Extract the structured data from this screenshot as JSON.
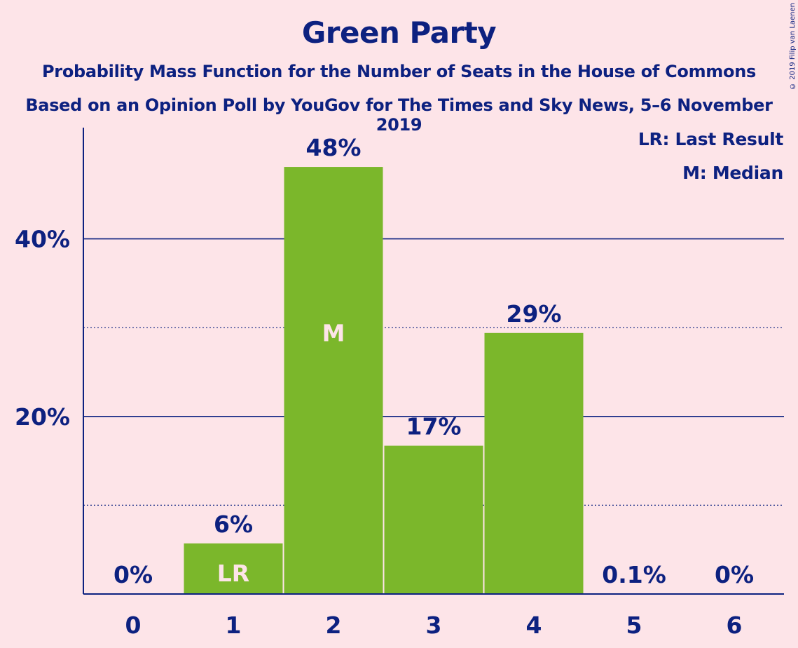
{
  "title": "Green Party",
  "subtitle_line1": "Probability Mass Function for the Number of Seats in the House of Commons",
  "subtitle_line2": "Based on an Opinion Poll by YouGov for The Times and Sky News, 5–6 November 2019",
  "copyright": "© 2019 Filip van Laenen",
  "legend": {
    "last_result": "LR: Last Result",
    "median": "M: Median"
  },
  "colors": {
    "background": "#fde4e8",
    "bar": "#7bb72b",
    "text": "#0d2180",
    "bar_marker_text": "#fde4e8"
  },
  "chart_data": {
    "type": "bar",
    "categories": [
      "0",
      "1",
      "2",
      "3",
      "4",
      "5",
      "6"
    ],
    "values": [
      0,
      5.7,
      48.1,
      16.7,
      29.4,
      0.1,
      0
    ],
    "value_labels": [
      "0%",
      "6%",
      "48%",
      "17%",
      "29%",
      "0.1%",
      "0%"
    ],
    "bar_markers": [
      "",
      "LR",
      "M",
      "",
      "",
      "",
      ""
    ],
    "ylim": [
      0,
      52
    ],
    "yticks": [
      20,
      40
    ],
    "ytick_labels": [
      "20%",
      "40%"
    ],
    "minor_gridlines": [
      10,
      30
    ],
    "xlabel": "",
    "ylabel": "",
    "grid": true,
    "legend_position": "top-right"
  }
}
